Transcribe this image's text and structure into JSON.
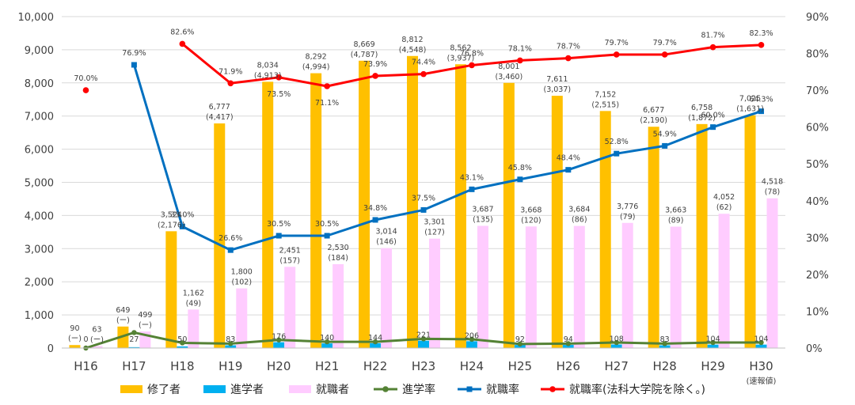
{
  "chart_data": {
    "type": "bar",
    "categories": [
      "H16",
      "H17",
      "H18",
      "H19",
      "H20",
      "H21",
      "H22",
      "H23",
      "H24",
      "H25",
      "H26",
      "H27",
      "H28",
      "H29",
      "H30"
    ],
    "category_note": "(速報値)",
    "ylim": [
      0,
      10000
    ],
    "yticks": [
      "0",
      "1,000",
      "2,000",
      "3,000",
      "4,000",
      "5,000",
      "6,000",
      "7,000",
      "8,000",
      "9,000",
      "10,000"
    ],
    "y2lim": [
      0,
      90
    ],
    "y2ticks": [
      "0%",
      "10%",
      "20%",
      "30%",
      "40%",
      "50%",
      "60%",
      "70%",
      "80%",
      "90%"
    ],
    "colors": {
      "completed": "#FFC000",
      "advanced": "#00B0F0",
      "employed": "#FFCCFF",
      "advance_rate": "#548235",
      "employment_rate": "#0070C0",
      "employment_rate_excl": "#FF0000"
    },
    "bars": [
      {
        "key": "completed",
        "name": "修了者",
        "values": [
          90,
          649,
          3524,
          6777,
          8034,
          8292,
          8669,
          8812,
          8562,
          8001,
          7611,
          7152,
          6677,
          6758,
          7025
        ],
        "labels": [
          "90",
          "649",
          "3,524",
          "6,777",
          "8,034",
          "8,292",
          "8,669",
          "8,812",
          "8,562",
          "8,001",
          "7,611",
          "7,152",
          "6,677",
          "6,758",
          "7,025"
        ],
        "sublabels": [
          "(ー)",
          "(ー)",
          "(2,176)",
          "(4,417)",
          "(4,913)",
          "(4,994)",
          "(4,787)",
          "(4,548)",
          "(3,937)",
          "(3,460)",
          "(3,037)",
          "(2,515)",
          "(2,190)",
          "(1,872)",
          "(1,631)"
        ]
      },
      {
        "key": "advanced",
        "name": "進学者",
        "values": [
          0,
          27,
          50,
          83,
          176,
          140,
          144,
          221,
          206,
          92,
          94,
          108,
          83,
          104,
          104
        ],
        "labels": [
          "0",
          "27",
          "50",
          "83",
          "176",
          "140",
          "144",
          "221",
          "206",
          "92",
          "94",
          "108",
          "83",
          "104",
          "104"
        ]
      },
      {
        "key": "employed",
        "name": "就職者",
        "values": [
          63,
          499,
          1162,
          1800,
          2451,
          2530,
          3014,
          3301,
          3687,
          3668,
          3684,
          3776,
          3663,
          4052,
          4518
        ],
        "labels": [
          "63",
          "499",
          "1,162",
          "1,800",
          "2,451",
          "2,530",
          "3,014",
          "3,301",
          "3,687",
          "3,668",
          "3,684",
          "3,776",
          "3,663",
          "4,052",
          "4,518"
        ],
        "sublabels": [
          "(ー)",
          "(ー)",
          "(49)",
          "(102)",
          "(157)",
          "(184)",
          "(146)",
          "(127)",
          "(135)",
          "(120)",
          "(86)",
          "(79)",
          "(89)",
          "(62)",
          "(78)"
        ]
      }
    ],
    "lines": [
      {
        "key": "advance_rate",
        "name": "進学率",
        "values": [
          0,
          4.2,
          1.4,
          1.2,
          2.2,
          1.7,
          1.7,
          2.5,
          2.4,
          1.1,
          1.2,
          1.5,
          1.2,
          1.5,
          1.5
        ],
        "labels": []
      },
      {
        "key": "employment_rate",
        "name": "就職率",
        "values": [
          null,
          76.9,
          33.0,
          26.6,
          30.5,
          30.5,
          34.8,
          37.5,
          43.1,
          45.8,
          48.4,
          52.8,
          54.9,
          60.0,
          64.3
        ],
        "labels": [
          "",
          "76.9%",
          "33.0%",
          "26.6%",
          "30.5%",
          "30.5%",
          "34.8%",
          "37.5%",
          "43.1%",
          "45.8%",
          "48.4%",
          "52.8%",
          "54.9%",
          "60.0%",
          "64.3%"
        ]
      },
      {
        "key": "employment_rate_excl",
        "name": "就職率(法科大学院を除く。)",
        "values": [
          70.0,
          null,
          82.6,
          71.9,
          73.5,
          71.1,
          73.9,
          74.4,
          76.8,
          78.1,
          78.7,
          79.7,
          79.7,
          81.7,
          82.3
        ],
        "labels": [
          "70.0%",
          "",
          "82.6%",
          "71.9%",
          "73.5%",
          "71.1%",
          "73.9%",
          "74.4%",
          "76.8%",
          "78.1%",
          "78.7%",
          "79.7%",
          "79.7%",
          "81.7%",
          "82.3%"
        ]
      }
    ],
    "legend": [
      "修了者",
      "進学者",
      "就職者",
      "進学率",
      "就職率",
      "就職率(法科大学院を除く。)"
    ],
    "legend_position": "bottom"
  }
}
